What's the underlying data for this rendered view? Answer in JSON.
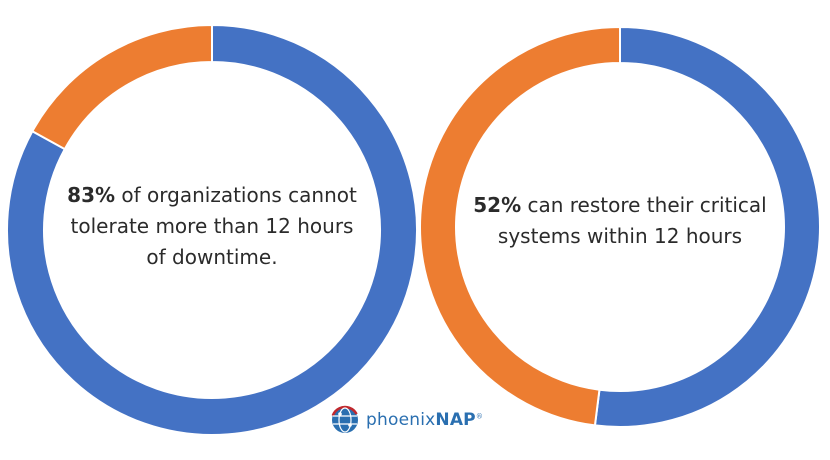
{
  "chart_data": [
    {
      "type": "pie",
      "variant": "donut",
      "slices": [
        {
          "value": 83,
          "color": "#4472c4"
        },
        {
          "value": 17,
          "color": "#ed7d31"
        }
      ],
      "center_text": {
        "bold": "83%",
        "rest": " of organizations cannot tolerate more than 12 hours of downtime."
      }
    },
    {
      "type": "pie",
      "variant": "donut",
      "slices": [
        {
          "value": 52,
          "color": "#4472c4"
        },
        {
          "value": 48,
          "color": "#ed7d31"
        }
      ],
      "center_text": {
        "bold": "52%",
        "rest": " can restore their critical systems within 12 hours"
      }
    }
  ],
  "logo": {
    "text_a": "phoenix",
    "text_b": "NAP",
    "mark": "®"
  }
}
